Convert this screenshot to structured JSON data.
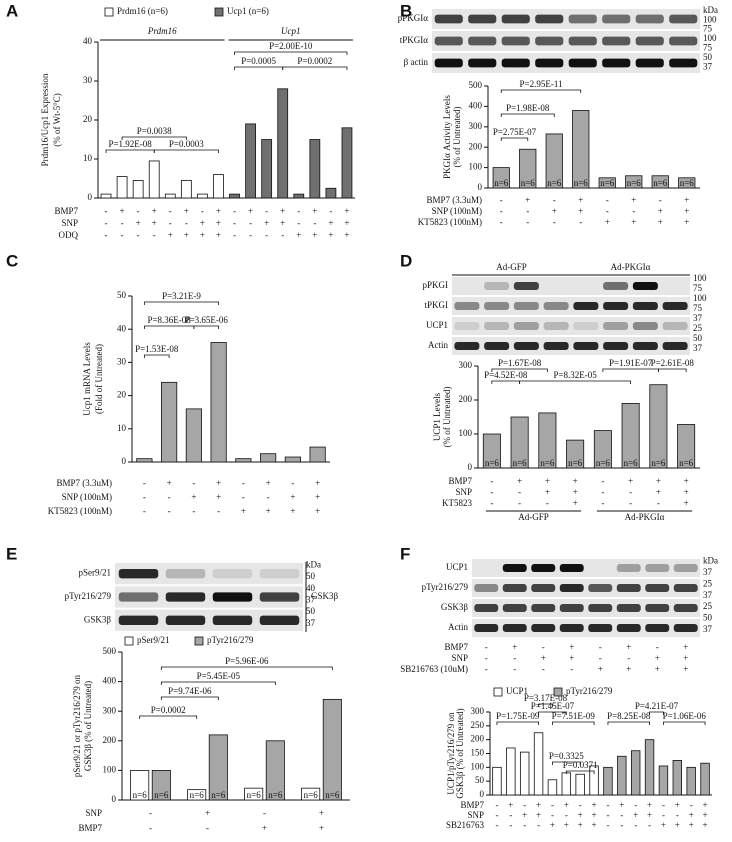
{
  "chart_data": [
    {
      "type": "bar",
      "panel": "A",
      "ylabel": [
        "Prdm16/Ucp1 Expression",
        "(% of Wt-5°C)"
      ],
      "ylim": [
        0,
        40
      ],
      "yticks": [
        0,
        10,
        20,
        30,
        40
      ],
      "series": [
        {
          "name": "Prdm16 (n=6)",
          "color": "#ffffff",
          "values": [
            1,
            5.5,
            4.5,
            9.5,
            1,
            4.5,
            1,
            6
          ]
        },
        {
          "name": "Ucp1 (n=6)",
          "color": "#707070",
          "values": [
            1,
            19,
            15,
            28,
            1,
            15,
            2.5,
            18
          ]
        }
      ],
      "group_headers": [
        "Prdm16",
        "Ucp1"
      ],
      "pvalues": [
        "P=1.92E-08",
        "P=0.0038",
        "P=0.0003",
        "P=2.00E-10",
        "P=0.0005",
        "P=0.0002"
      ],
      "conditions": [
        {
          "label": "BMP7",
          "signs": [
            "-",
            "+",
            "-",
            "+",
            "-",
            "+",
            "-",
            "+",
            "-",
            "+",
            "-",
            "+",
            "-",
            "+",
            "-",
            "+"
          ]
        },
        {
          "label": "SNP",
          "signs": [
            "-",
            "-",
            "+",
            "+",
            "-",
            "-",
            "+",
            "+",
            "-",
            "-",
            "+",
            "+",
            "-",
            "-",
            "+",
            "+"
          ]
        },
        {
          "label": "ODQ",
          "signs": [
            "-",
            "-",
            "-",
            "-",
            "+",
            "+",
            "+",
            "+",
            "-",
            "-",
            "-",
            "-",
            "+",
            "+",
            "+",
            "+"
          ]
        }
      ]
    },
    {
      "type": "bar",
      "panel": "B",
      "ylabel": [
        "PKGIα Activity Levels",
        "(% of Untreated)"
      ],
      "ylim": [
        0,
        500
      ],
      "yticks": [
        0,
        100,
        200,
        300,
        400,
        500
      ],
      "series": [
        {
          "color": "#a6a6a6",
          "values": [
            100,
            190,
            265,
            380,
            50,
            60,
            60,
            50
          ]
        }
      ],
      "bar_label": "n=6",
      "blot": {
        "rows": [
          "pPKGIα",
          "tPKGIα",
          "β actin"
        ],
        "kda": [
          "kDa",
          "100",
          "75",
          "100",
          "75",
          "50",
          "37"
        ]
      },
      "pvalues": [
        "P=2.75E-07",
        "P=1.98E-08",
        "P=2.95E-11"
      ],
      "conditions": [
        {
          "label": "BMP7 (3.3uM)",
          "signs": [
            "-",
            "+",
            "-",
            "+",
            "-",
            "+",
            "-",
            "+"
          ]
        },
        {
          "label": "SNP (100nM)",
          "signs": [
            "-",
            "-",
            "+",
            "+",
            "-",
            "-",
            "+",
            "+"
          ]
        },
        {
          "label": "KT5823 (100nM)",
          "signs": [
            "-",
            "-",
            "-",
            "-",
            "+",
            "+",
            "+",
            "+"
          ]
        }
      ]
    },
    {
      "type": "bar",
      "panel": "C",
      "ylabel": [
        "Ucp1 mRNA Levels",
        "(Fold of Untreated)"
      ],
      "ylim": [
        0,
        50
      ],
      "yticks": [
        0,
        10,
        20,
        30,
        40,
        50
      ],
      "series": [
        {
          "color": "#a6a6a6",
          "values": [
            1,
            24,
            16,
            36,
            1,
            2.5,
            1.5,
            4.5
          ]
        }
      ],
      "pvalues": [
        "P=1.53E-08",
        "P=8.36E-08",
        "P=3.65E-06",
        "P=3.21E-9"
      ],
      "conditions": [
        {
          "label": "BMP7 (3.3uM)",
          "signs": [
            "-",
            "+",
            "-",
            "+",
            "-",
            "+",
            "-",
            "+"
          ]
        },
        {
          "label": "SNP (100nM)",
          "signs": [
            "-",
            "-",
            "+",
            "+",
            "-",
            "-",
            "+",
            "+"
          ]
        },
        {
          "label": "KT5823 (100nM)",
          "signs": [
            "-",
            "-",
            "-",
            "-",
            "+",
            "+",
            "+",
            "+"
          ]
        }
      ]
    },
    {
      "type": "bar",
      "panel": "D",
      "ylabel": [
        "UCP1 Levels",
        "(% of Untreated)"
      ],
      "ylim": [
        0,
        300
      ],
      "yticks": [
        0,
        100,
        200,
        300
      ],
      "series": [
        {
          "color": "#a6a6a6",
          "values": [
            100,
            150,
            162,
            82,
            110,
            190,
            245,
            128
          ]
        }
      ],
      "bar_label": "n=6",
      "blot": {
        "headers": [
          "Ad-GFP",
          "Ad-PKGIα"
        ],
        "rows": [
          "pPKGI",
          "tPKGI",
          "UCP1",
          "Actin"
        ],
        "kda": [
          "100",
          "75",
          "100",
          "75",
          "37",
          "25",
          "50",
          "37"
        ]
      },
      "pvalues": [
        "P=1.67E-08",
        "P=1.91E-07",
        "P=2.61E-08",
        "P=4.52E-08",
        "P=8.32E-05"
      ],
      "conditions": [
        {
          "label": "BMP7",
          "signs": [
            "-",
            "+",
            "+",
            "+",
            "-",
            "+",
            "+",
            "+"
          ]
        },
        {
          "label": "SNP",
          "signs": [
            "-",
            "-",
            "+",
            "+",
            "-",
            "-",
            "+",
            "+"
          ]
        },
        {
          "label": "KT5823",
          "signs": [
            "-",
            "-",
            "-",
            "+",
            "-",
            "-",
            "-",
            "+"
          ]
        }
      ],
      "groups": [
        "Ad-GFP",
        "Ad-PKGIα"
      ]
    },
    {
      "type": "bar",
      "panel": "E",
      "ylabel": [
        "pSer9/21 or pTyr216/279 on",
        "GSK3β (% of Untreated)"
      ],
      "ylim": [
        0,
        500
      ],
      "yticks": [
        0,
        100,
        200,
        300,
        400,
        500
      ],
      "series": [
        {
          "name": "pSer9/21",
          "color": "#ffffff",
          "values": [
            100,
            35,
            40,
            40
          ]
        },
        {
          "name": "pTyr216/279",
          "color": "#a6a6a6",
          "values": [
            100,
            220,
            200,
            340
          ]
        }
      ],
      "bar_label": "n=6",
      "blot": {
        "rows": [
          "pSer9/21",
          "pTyr216/279",
          "GSK3β"
        ],
        "kda": [
          "kDa",
          "50",
          "40",
          "37",
          "50",
          "37"
        ],
        "group": "GSK3β"
      },
      "pvalues": [
        "P=0.0002",
        "P=9.74E-06",
        "P=5.45E-05",
        "P=5.96E-06"
      ],
      "conditions": [
        {
          "label": "SNP",
          "signs": [
            "-",
            "+",
            "-",
            "+"
          ]
        },
        {
          "label": "BMP7",
          "signs": [
            "-",
            "-",
            "+",
            "+"
          ]
        }
      ]
    },
    {
      "type": "bar",
      "panel": "F",
      "ylabel": [
        "UCP1/pTyr216/279 on",
        "GSK3β (% of Untreated)"
      ],
      "ylim": [
        0,
        300
      ],
      "yticks": [
        0,
        50,
        100,
        150,
        200,
        250,
        300
      ],
      "series": [
        {
          "name": "UCP1",
          "color": "#ffffff",
          "values": [
            100,
            170,
            155,
            225,
            55,
            80,
            75,
            105
          ]
        },
        {
          "name": "pTyr216/279",
          "color": "#a6a6a6",
          "values": [
            100,
            140,
            160,
            200,
            105,
            125,
            100,
            115
          ]
        }
      ],
      "blot": {
        "rows": [
          "UCP1",
          "pTyr216/279",
          "GSK3β",
          "Actin"
        ],
        "kda": [
          "kDa",
          "37",
          "25",
          "37",
          "25",
          "50",
          "37"
        ]
      },
      "blot_conditions": [
        {
          "label": "BMP7",
          "signs": [
            "-",
            "+",
            "-",
            "+",
            "-",
            "+",
            "-",
            "+"
          ]
        },
        {
          "label": "SNP",
          "signs": [
            "-",
            "-",
            "+",
            "+",
            "-",
            "-",
            "+",
            "+"
          ]
        },
        {
          "label": "SB216763 (10uM)",
          "signs": [
            "-",
            "-",
            "-",
            "-",
            "+",
            "+",
            "+",
            "+"
          ]
        }
      ],
      "pvalues": [
        "P=1.75E-09",
        "P=3.17E-08",
        "P=1.45E-07",
        "P=7.51E-09",
        "P=0.3325",
        "P=0.0371",
        "P=8.25E-08",
        "P=4.21E-07",
        "P=1.06E-06"
      ],
      "conditions": [
        {
          "label": "BMP7",
          "signs": [
            "-",
            "+",
            "-",
            "+",
            "-",
            "+",
            "-",
            "+",
            "-",
            "+",
            "-",
            "+",
            "-",
            "+",
            "-",
            "+"
          ]
        },
        {
          "label": "SNP",
          "signs": [
            "-",
            "-",
            "+",
            "+",
            "-",
            "-",
            "+",
            "+",
            "-",
            "-",
            "+",
            "+",
            "-",
            "-",
            "+",
            "+"
          ]
        },
        {
          "label": "SB216763",
          "signs": [
            "-",
            "-",
            "-",
            "-",
            "+",
            "+",
            "+",
            "+",
            "-",
            "-",
            "-",
            "-",
            "+",
            "+",
            "+",
            "+"
          ]
        }
      ]
    }
  ]
}
